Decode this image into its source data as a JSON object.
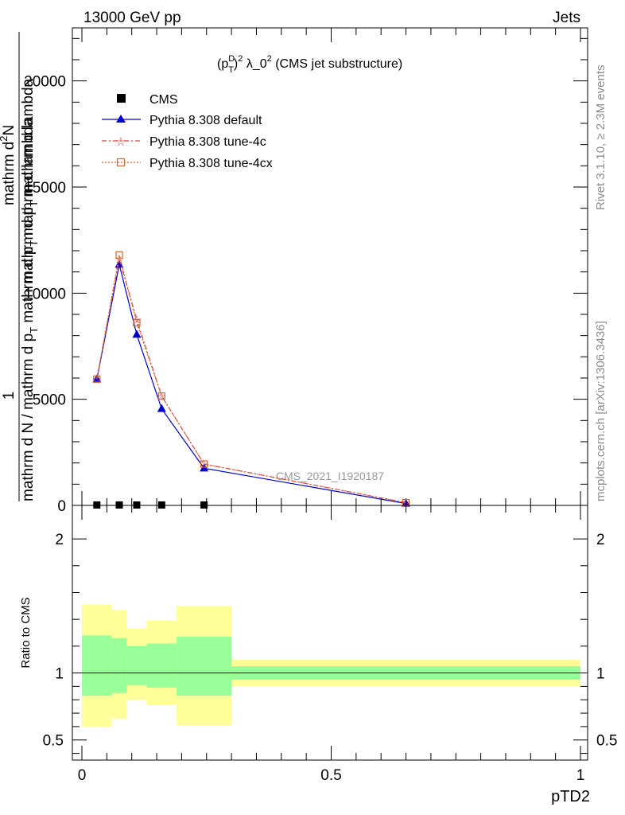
{
  "header": {
    "left": "13000 GeV pp",
    "right": "Jets"
  },
  "side_labels": {
    "rivet": "Rivet 3.1.10, ≥ 2.3M events",
    "mcplots": "mcplots.cern.ch [arXiv:1306.3436]"
  },
  "watermark": "CMS_2021_I1920187",
  "chart_data": [
    {
      "type": "line",
      "title": "(p_T^D)^2 λ_0^2 (CMS jet substructure)",
      "title_parts": {
        "open": "(p",
        "sup1": "D",
        "sub1": "T",
        "close": ")",
        "sup2": "2",
        "lambda": " λ_0",
        "sup3": "2",
        "rest": " (CMS jet substructure)"
      },
      "ylabel": {
        "line1": "1",
        "line2": "mathrm d N / mathrm d p_T mathrm d p_T mathrm d lambda",
        "line3": "mathrm d^2 N",
        "dual_text": "mathrm d N / mathrm d p",
        "dual_sub": "T",
        "dual_tail": " mathrm d p",
        "dual_sub2": "T",
        "dual_tail2": " mathrm d lambda",
        "num_text": "mathrm d",
        "num_sup": "2",
        "num_tail": "N",
        "num_line2": "mathrm d N",
        "overlay": "mathrm d p",
        "overlay_sub": "T",
        "overlay_tail": " mathrm d lambda",
        "overlay_top": "mathrm d lambda",
        "overlay_top2": "mathrm d p"
      },
      "xlim": [
        0,
        1
      ],
      "ylim": [
        0,
        22500
      ],
      "yticks": [
        0,
        5000,
        10000,
        15000,
        20000
      ],
      "ytick_labels": [
        "0",
        "5000",
        "10000",
        "15000",
        "20000"
      ],
      "x": [
        0.03,
        0.075,
        0.11,
        0.16,
        0.245,
        0.65
      ],
      "series": [
        {
          "name": "CMS",
          "values": [
            0,
            0,
            0,
            0,
            0,
            null
          ],
          "color": "#000000",
          "marker": "square"
        },
        {
          "name": "Pythia 8.308 default",
          "values": [
            5950,
            11350,
            8050,
            4550,
            1750,
            90
          ],
          "color": "#0000cc",
          "marker": "triangle"
        },
        {
          "name": "Pythia 8.308 tune-4c",
          "values": [
            5950,
            11600,
            8750,
            5150,
            1950,
            130
          ],
          "color": "#dd4444",
          "marker": "star"
        },
        {
          "name": "Pythia 8.308 tune-4cx",
          "values": [
            5950,
            11800,
            8600,
            5150,
            1950,
            130
          ],
          "color": "#cc6633",
          "marker": "open-square"
        }
      ]
    },
    {
      "type": "area",
      "ylabel": "Ratio to CMS",
      "xlabel": "pTD2",
      "xlim": [
        0,
        1
      ],
      "ylim": [
        0.35,
        2.25
      ],
      "yticks": [
        0.5,
        1,
        2
      ],
      "ytick_labels": [
        "0.5",
        "1",
        "2"
      ],
      "xticks": [
        0,
        0.5,
        1
      ],
      "xtick_labels": [
        "0",
        "0.5",
        "1"
      ],
      "bins": [
        0,
        0.06,
        0.09,
        0.13,
        0.19,
        0.3,
        1.0
      ],
      "band_outer_lo": [
        0.6,
        0.66,
        0.8,
        0.76,
        0.61,
        0.9
      ],
      "band_outer_hi": [
        1.51,
        1.47,
        1.33,
        1.39,
        1.5,
        1.1
      ],
      "band_inner_lo": [
        0.83,
        0.85,
        0.91,
        0.89,
        0.83,
        0.95
      ],
      "band_inner_hi": [
        1.28,
        1.26,
        1.2,
        1.22,
        1.27,
        1.05
      ],
      "reference": 1,
      "colors": {
        "outer": "#ffff99",
        "inner": "#99ff99"
      }
    }
  ]
}
